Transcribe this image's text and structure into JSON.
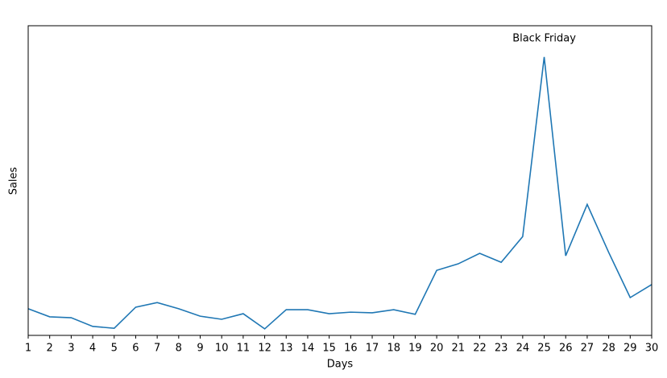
{
  "chart_data": {
    "type": "line",
    "x_label": "Days",
    "y_label": "Sales",
    "x": [
      1,
      2,
      3,
      4,
      5,
      6,
      7,
      8,
      9,
      10,
      11,
      12,
      13,
      14,
      15,
      16,
      17,
      18,
      19,
      20,
      21,
      22,
      23,
      24,
      25,
      26,
      27,
      28,
      29,
      30
    ],
    "series": [
      {
        "color": "#1f77b4",
        "values": [
          8.6,
          6.0,
          5.7,
          2.9,
          2.3,
          9.1,
          10.6,
          8.6,
          6.2,
          5.2,
          7.0,
          2.1,
          8.3,
          8.3,
          7.0,
          7.5,
          7.3,
          8.3,
          6.8,
          21.0,
          23.1,
          26.5,
          23.6,
          31.9,
          89.9,
          25.7,
          42.3,
          26.8,
          12.2,
          16.4
        ]
      }
    ],
    "xlim": [
      1,
      30
    ],
    "ylim": [
      0,
      100
    ],
    "xticks": [
      1,
      2,
      3,
      4,
      5,
      6,
      7,
      8,
      9,
      10,
      11,
      12,
      13,
      14,
      15,
      16,
      17,
      18,
      19,
      20,
      21,
      22,
      23,
      24,
      25,
      26,
      27,
      28,
      29,
      30
    ],
    "annotations": [
      {
        "text": "Black Friday",
        "x": 25,
        "y": 95.8
      }
    ],
    "grid": false
  }
}
